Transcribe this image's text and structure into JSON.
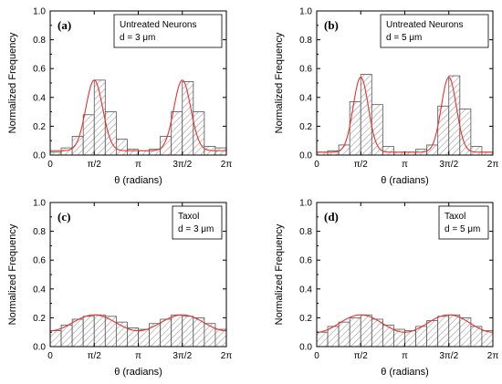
{
  "chart_data": [
    {
      "type": "bar",
      "panel_label": "(a)",
      "legend_lines": [
        "Untreated Neurons",
        "d = 3 μm"
      ],
      "xlabel": "θ (radians)",
      "ylabel": "Normalized Frequency",
      "xlim": [
        0,
        6.2832
      ],
      "ylim": [
        0,
        1.0
      ],
      "yticks": [
        "0.0",
        "0.2",
        "0.4",
        "0.6",
        "0.8",
        "1.0"
      ],
      "xticks": [
        "0",
        "π/2",
        "π",
        "3π/2",
        "2π"
      ],
      "x": [
        0.1963,
        0.589,
        0.9817,
        1.3744,
        1.767,
        2.1598,
        2.5525,
        2.9452,
        3.3379,
        3.7306,
        4.1233,
        4.516,
        4.9087,
        5.3014,
        5.6941,
        6.0868
      ],
      "values": [
        0.02,
        0.05,
        0.13,
        0.28,
        0.52,
        0.3,
        0.11,
        0.04,
        0.03,
        0.04,
        0.13,
        0.3,
        0.51,
        0.3,
        0.06,
        0.05
      ],
      "fit": {
        "type": "double gaussian",
        "baseline": 0.03,
        "amplitude": 0.49,
        "centers": [
          1.5708,
          4.7124
        ],
        "sigma": 0.3
      }
    },
    {
      "type": "bar",
      "panel_label": "(b)",
      "legend_lines": [
        "Untreated Neurons",
        "d = 5 μm"
      ],
      "xlabel": "θ (radians)",
      "ylabel": "Normalized Frequency",
      "xlim": [
        0,
        6.2832
      ],
      "ylim": [
        0,
        1.0
      ],
      "yticks": [
        "0.0",
        "0.2",
        "0.4",
        "0.6",
        "0.8",
        "1.0"
      ],
      "xticks": [
        "0",
        "π/2",
        "π",
        "3π/2",
        "2π"
      ],
      "x": [
        0.1963,
        0.589,
        0.9817,
        1.3744,
        1.767,
        2.1598,
        2.5525,
        2.9452,
        3.3379,
        3.7306,
        4.1233,
        4.516,
        4.9087,
        5.3014,
        5.6941,
        6.0868
      ],
      "values": [
        0.02,
        0.03,
        0.07,
        0.37,
        0.56,
        0.35,
        0.06,
        0.02,
        0.02,
        0.04,
        0.07,
        0.34,
        0.55,
        0.32,
        0.06,
        0.02
      ],
      "fit": {
        "type": "double gaussian",
        "baseline": 0.02,
        "amplitude": 0.52,
        "centers": [
          1.5708,
          4.7124
        ],
        "sigma": 0.27
      }
    },
    {
      "type": "bar",
      "panel_label": "(c)",
      "legend_lines": [
        "Taxol",
        "d = 3 μm"
      ],
      "xlabel": "θ (radians)",
      "ylabel": "Normalized Frequency",
      "xlim": [
        0,
        6.2832
      ],
      "ylim": [
        0,
        1.0
      ],
      "yticks": [
        "0.0",
        "0.2",
        "0.4",
        "0.6",
        "0.8",
        "1.0"
      ],
      "xticks": [
        "0",
        "π/2",
        "π",
        "3π/2",
        "2π"
      ],
      "x": [
        0.1963,
        0.589,
        0.9817,
        1.3744,
        1.767,
        2.1598,
        2.5525,
        2.9452,
        3.3379,
        3.7306,
        4.1233,
        4.516,
        4.9087,
        5.3014,
        5.6941,
        6.0868
      ],
      "values": [
        0.11,
        0.15,
        0.19,
        0.21,
        0.22,
        0.21,
        0.17,
        0.13,
        0.12,
        0.16,
        0.19,
        0.22,
        0.21,
        0.2,
        0.16,
        0.12
      ],
      "fit": {
        "type": "sinusoid",
        "mean": 0.165,
        "amplitude": 0.055,
        "period": 3.1416
      }
    },
    {
      "type": "bar",
      "panel_label": "(d)",
      "legend_lines": [
        "Taxol",
        "d = 5 μm"
      ],
      "xlabel": "θ (radians)",
      "ylabel": "Normalized Frequency",
      "xlim": [
        0,
        6.2832
      ],
      "ylim": [
        0,
        1.0
      ],
      "yticks": [
        "0.0",
        "0.2",
        "0.4",
        "0.6",
        "0.8",
        "1.0"
      ],
      "xticks": [
        "0",
        "π/2",
        "π",
        "3π/2",
        "2π"
      ],
      "x": [
        0.1963,
        0.589,
        0.9817,
        1.3744,
        1.767,
        2.1598,
        2.5525,
        2.9452,
        3.3379,
        3.7306,
        4.1233,
        4.516,
        4.9087,
        5.3014,
        5.6941,
        6.0868
      ],
      "values": [
        0.1,
        0.14,
        0.17,
        0.2,
        0.22,
        0.19,
        0.15,
        0.12,
        0.11,
        0.14,
        0.18,
        0.21,
        0.22,
        0.2,
        0.14,
        0.11
      ],
      "fit": {
        "type": "sinusoid",
        "mean": 0.16,
        "amplitude": 0.06,
        "period": 3.1416
      }
    }
  ],
  "colors": {
    "bar_fill": "#ffffff",
    "bar_stroke": "#555555",
    "hatch": "#9a9a9a",
    "fit_line": "#e8322f",
    "axis": "#000000"
  }
}
